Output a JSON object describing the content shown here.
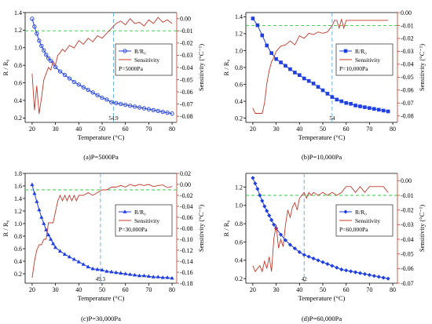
{
  "figure": {
    "colors": {
      "primary": "#1f3fe0",
      "secondary": "#c0392b",
      "threshold": "#2ecc40",
      "marker_line": "#5dade2",
      "axis_left": "#000000",
      "axis_right": "#c0392b"
    }
  },
  "chart_data": [
    {
      "type": "line",
      "caption": "(a)P=5000Pa",
      "xlabel": "Temperature (°C)",
      "ylabel": "R / R₀",
      "y2label": "Sensitivity (°C⁻¹)",
      "xlim": [
        17,
        82
      ],
      "xticks": [
        20,
        30,
        40,
        50,
        60,
        70,
        80
      ],
      "xtick_labels": [
        "20",
        "30",
        "40",
        "50",
        "60",
        "70",
        "80"
      ],
      "ylim": [
        0.15,
        1.4
      ],
      "yticks": [
        0.2,
        0.4,
        0.6,
        0.8,
        1.0,
        1.2,
        1.4
      ],
      "y2lim": [
        -0.085,
        0.005
      ],
      "y2ticks": [
        0.0,
        -0.01,
        -0.02,
        -0.03,
        -0.04,
        -0.05,
        -0.06,
        -0.07,
        -0.08
      ],
      "marker_x": 54.9,
      "marker_label": "54.9",
      "threshold_y2": -0.01,
      "legend": {
        "placement": "right-middle",
        "entries": [
          "R/R₀",
          "Sensitivity"
        ],
        "note": "P=5000Pa"
      },
      "series": [
        {
          "name": "R/R₀",
          "axis": "left",
          "marker": "circle-open",
          "x": [
            20,
            21,
            22,
            23,
            24,
            25,
            26,
            27,
            28,
            30,
            32,
            34,
            36,
            38,
            40,
            42,
            44,
            46,
            48,
            50,
            52,
            54,
            56,
            58,
            60,
            62,
            64,
            66,
            68,
            70,
            72,
            74,
            76,
            78,
            80
          ],
          "y": [
            1.33,
            1.24,
            1.16,
            1.08,
            1.02,
            0.97,
            0.92,
            0.88,
            0.85,
            0.78,
            0.73,
            0.69,
            0.65,
            0.61,
            0.58,
            0.55,
            0.52,
            0.49,
            0.46,
            0.43,
            0.41,
            0.38,
            0.37,
            0.36,
            0.35,
            0.34,
            0.33,
            0.32,
            0.31,
            0.3,
            0.29,
            0.28,
            0.27,
            0.26,
            0.25
          ]
        },
        {
          "name": "Sensitivity",
          "axis": "right",
          "x": [
            20,
            21,
            22,
            23,
            24,
            25,
            26,
            27,
            28,
            29,
            30,
            31,
            32,
            33,
            34,
            36,
            38,
            40,
            42,
            44,
            46,
            48,
            50,
            52,
            54,
            56,
            58,
            60,
            62,
            64,
            66,
            68,
            70,
            72,
            74,
            76,
            78,
            80
          ],
          "y": [
            -0.045,
            -0.075,
            -0.055,
            -0.078,
            -0.065,
            -0.05,
            -0.045,
            -0.04,
            -0.042,
            -0.035,
            -0.038,
            -0.03,
            -0.028,
            -0.025,
            -0.027,
            -0.022,
            -0.024,
            -0.018,
            -0.021,
            -0.016,
            -0.019,
            -0.014,
            -0.016,
            -0.012,
            -0.008,
            -0.004,
            -0.002,
            -0.005,
            0.0,
            -0.004,
            -0.003,
            -0.006,
            -0.001,
            -0.004,
            0.001,
            -0.003,
            -0.001,
            -0.004
          ]
        }
      ]
    },
    {
      "type": "line",
      "caption": "(b)P=10,000Pa",
      "xlabel": "Temperature (°C)",
      "ylabel": "R / R₀",
      "y2label": "Sensitivity (°C⁻¹)",
      "xlim": [
        17,
        82
      ],
      "xticks": [
        20,
        30,
        40,
        50,
        60,
        70,
        80
      ],
      "xtick_labels": [
        "20",
        "30",
        "40",
        "50",
        "60",
        "70",
        "80"
      ],
      "ylim": [
        0.15,
        1.45
      ],
      "yticks": [
        0.2,
        0.4,
        0.6,
        0.8,
        1.0,
        1.2,
        1.4
      ],
      "y2lim": [
        -0.085,
        0.0
      ],
      "y2ticks": [
        0.0,
        -0.01,
        -0.02,
        -0.03,
        -0.04,
        -0.05,
        -0.06,
        -0.07,
        -0.08
      ],
      "marker_x": 54,
      "marker_label": "54",
      "threshold_y2": -0.01,
      "legend": {
        "placement": "right-middle",
        "entries": [
          "R/R₀",
          "Sensitivity"
        ],
        "note": "P=10,000Pa"
      },
      "series": [
        {
          "name": "R/R₀",
          "axis": "left",
          "marker": "square-filled",
          "x": [
            20,
            22,
            24,
            26,
            28,
            30,
            32,
            34,
            36,
            38,
            40,
            42,
            44,
            46,
            48,
            50,
            52,
            54,
            56,
            58,
            60,
            62,
            64,
            66,
            68,
            70,
            72,
            74,
            76,
            78
          ],
          "y": [
            1.38,
            1.3,
            1.18,
            1.06,
            0.97,
            0.9,
            0.86,
            0.82,
            0.78,
            0.74,
            0.71,
            0.67,
            0.64,
            0.61,
            0.57,
            0.53,
            0.49,
            0.45,
            0.42,
            0.4,
            0.38,
            0.37,
            0.35,
            0.34,
            0.33,
            0.32,
            0.31,
            0.3,
            0.29,
            0.28
          ]
        },
        {
          "name": "Sensitivity",
          "axis": "right",
          "x": [
            20,
            21,
            22,
            23,
            24,
            25,
            26,
            27,
            28,
            29,
            30,
            31,
            32,
            34,
            36,
            38,
            40,
            42,
            44,
            46,
            48,
            50,
            52,
            54,
            55,
            56,
            57,
            58,
            59,
            60,
            62,
            64,
            66,
            68,
            70,
            72,
            74,
            76,
            78
          ],
          "y": [
            -0.074,
            -0.078,
            -0.078,
            -0.078,
            -0.078,
            -0.07,
            -0.055,
            -0.045,
            -0.038,
            -0.035,
            -0.03,
            -0.028,
            -0.026,
            -0.025,
            -0.022,
            -0.025,
            -0.018,
            -0.02,
            -0.016,
            -0.017,
            -0.015,
            -0.016,
            -0.015,
            -0.01,
            -0.006,
            -0.006,
            -0.012,
            -0.005,
            -0.012,
            -0.006,
            -0.006,
            -0.006,
            -0.006,
            -0.006,
            -0.006,
            -0.006,
            -0.006,
            -0.006,
            -0.006
          ]
        }
      ]
    },
    {
      "type": "line",
      "caption": "(c)P=30,000Pa",
      "xlabel": "Temperature (°C)",
      "ylabel": "R / R₀",
      "y2label": "Sensitivity (°C⁻¹)",
      "xlim": [
        17,
        82
      ],
      "xticks": [
        20,
        30,
        40,
        50,
        60,
        70,
        80
      ],
      "xtick_labels": [
        "20",
        "30",
        "40",
        "50",
        "60",
        "70",
        "80"
      ],
      "ylim": [
        0.05,
        1.8
      ],
      "yticks": [
        0.2,
        0.4,
        0.6,
        0.8,
        1.0,
        1.2,
        1.4,
        1.6,
        1.8
      ],
      "y2lim": [
        -0.18,
        0.02
      ],
      "y2ticks": [
        0.02,
        0.0,
        -0.02,
        -0.04,
        -0.06,
        -0.08,
        -0.1,
        -0.12,
        -0.14,
        -0.16,
        -0.18
      ],
      "marker_x": 49.3,
      "marker_label": "49.3",
      "threshold_y2": -0.01,
      "legend": {
        "placement": "right-middle",
        "entries": [
          "R/R₀",
          "Sensitivity"
        ],
        "note": "P=30,000Pa"
      },
      "series": [
        {
          "name": "R/R₀",
          "axis": "left",
          "marker": "triangle-filled",
          "x": [
            20,
            21,
            22,
            23,
            24,
            25,
            26,
            27,
            28,
            29,
            30,
            32,
            34,
            36,
            38,
            40,
            42,
            44,
            46,
            48,
            50,
            52,
            54,
            56,
            58,
            60,
            62,
            64,
            66,
            68,
            70,
            72,
            74,
            76,
            78,
            80
          ],
          "y": [
            1.62,
            1.48,
            1.35,
            1.22,
            1.1,
            1.0,
            0.9,
            0.82,
            0.75,
            0.68,
            0.62,
            0.56,
            0.51,
            0.47,
            0.43,
            0.39,
            0.35,
            0.31,
            0.28,
            0.27,
            0.26,
            0.24,
            0.23,
            0.22,
            0.21,
            0.2,
            0.19,
            0.18,
            0.17,
            0.17,
            0.16,
            0.15,
            0.15,
            0.14,
            0.14,
            0.13
          ]
        },
        {
          "name": "Sensitivity",
          "axis": "right",
          "x": [
            20,
            21,
            22,
            23,
            24,
            25,
            26,
            27,
            28,
            29,
            30,
            31,
            32,
            33,
            34,
            35,
            36,
            37,
            38,
            39,
            40,
            42,
            44,
            46,
            48,
            50,
            52,
            54,
            56,
            58,
            60,
            62,
            64,
            66,
            68,
            70,
            72,
            74,
            76,
            78,
            80
          ],
          "y": [
            -0.17,
            -0.14,
            -0.12,
            -0.11,
            -0.11,
            -0.1,
            -0.1,
            -0.07,
            -0.07,
            -0.07,
            -0.05,
            -0.03,
            -0.02,
            -0.03,
            -0.02,
            -0.03,
            -0.02,
            -0.03,
            -0.02,
            -0.03,
            -0.02,
            -0.02,
            -0.015,
            -0.02,
            -0.015,
            -0.01,
            -0.01,
            -0.005,
            -0.005,
            -0.002,
            -0.005,
            0.0,
            -0.003,
            0.0,
            -0.002,
            0.0,
            -0.004,
            -0.002,
            -0.001,
            -0.006,
            -0.004
          ]
        }
      ]
    },
    {
      "type": "line",
      "caption": "(d)P=60,000Pa",
      "xlabel": "Temperature (°C)",
      "ylabel": "R / R₀",
      "y2label": "Sensitivity (°C⁻¹)",
      "xlim": [
        17,
        82
      ],
      "xticks": [
        20,
        30,
        40,
        50,
        60,
        70,
        80
      ],
      "xtick_labels": [
        "20",
        "30",
        "40",
        "50",
        "60",
        "70",
        "80"
      ],
      "ylim": [
        0.15,
        1.35
      ],
      "yticks": [
        0.2,
        0.4,
        0.6,
        0.8,
        1.0,
        1.2
      ],
      "y2lim": [
        -0.07,
        0.005
      ],
      "y2ticks": [
        0.0,
        -0.01,
        -0.02,
        -0.03,
        -0.04,
        -0.05,
        -0.06,
        -0.07
      ],
      "marker_x": 42,
      "marker_label": "42",
      "threshold_y2": -0.01,
      "legend": {
        "placement": "right-middle",
        "entries": [
          "R/R₀",
          "Sensitivity"
        ],
        "note": "P=60,000Pa"
      },
      "series": [
        {
          "name": "R/R₀",
          "axis": "left",
          "marker": "diamond-filled",
          "x": [
            20,
            21,
            22,
            23,
            24,
            25,
            26,
            27,
            28,
            29,
            30,
            32,
            34,
            36,
            38,
            40,
            42,
            44,
            46,
            48,
            50,
            52,
            54,
            56,
            58,
            60,
            62,
            64,
            66,
            68,
            70,
            72,
            74,
            76,
            78
          ],
          "y": [
            1.3,
            1.24,
            1.18,
            1.11,
            1.05,
            0.99,
            0.94,
            0.89,
            0.84,
            0.79,
            0.75,
            0.68,
            0.62,
            0.57,
            0.53,
            0.49,
            0.46,
            0.44,
            0.42,
            0.4,
            0.38,
            0.36,
            0.34,
            0.32,
            0.3,
            0.29,
            0.28,
            0.27,
            0.26,
            0.25,
            0.24,
            0.23,
            0.22,
            0.21,
            0.2
          ]
        },
        {
          "name": "Sensitivity",
          "axis": "right",
          "x": [
            20,
            21,
            22,
            23,
            24,
            25,
            26,
            27,
            28,
            29,
            30,
            31,
            32,
            33,
            34,
            35,
            36,
            37,
            38,
            39,
            40,
            41,
            42,
            43,
            44,
            45,
            46,
            48,
            50,
            52,
            54,
            56,
            58,
            60,
            62,
            64,
            66,
            68,
            70,
            72,
            74,
            76,
            78
          ],
          "y": [
            -0.058,
            -0.062,
            -0.06,
            -0.058,
            -0.062,
            -0.055,
            -0.06,
            -0.052,
            -0.062,
            -0.04,
            -0.03,
            -0.046,
            -0.04,
            -0.045,
            -0.03,
            -0.02,
            -0.025,
            -0.018,
            -0.015,
            -0.02,
            -0.012,
            -0.01,
            -0.008,
            -0.012,
            -0.008,
            -0.01,
            -0.008,
            -0.01,
            -0.008,
            -0.01,
            -0.008,
            -0.01,
            -0.008,
            -0.004,
            -0.004,
            -0.008,
            -0.004,
            -0.008,
            -0.004,
            -0.004,
            -0.004,
            -0.004,
            -0.008
          ]
        }
      ]
    }
  ]
}
